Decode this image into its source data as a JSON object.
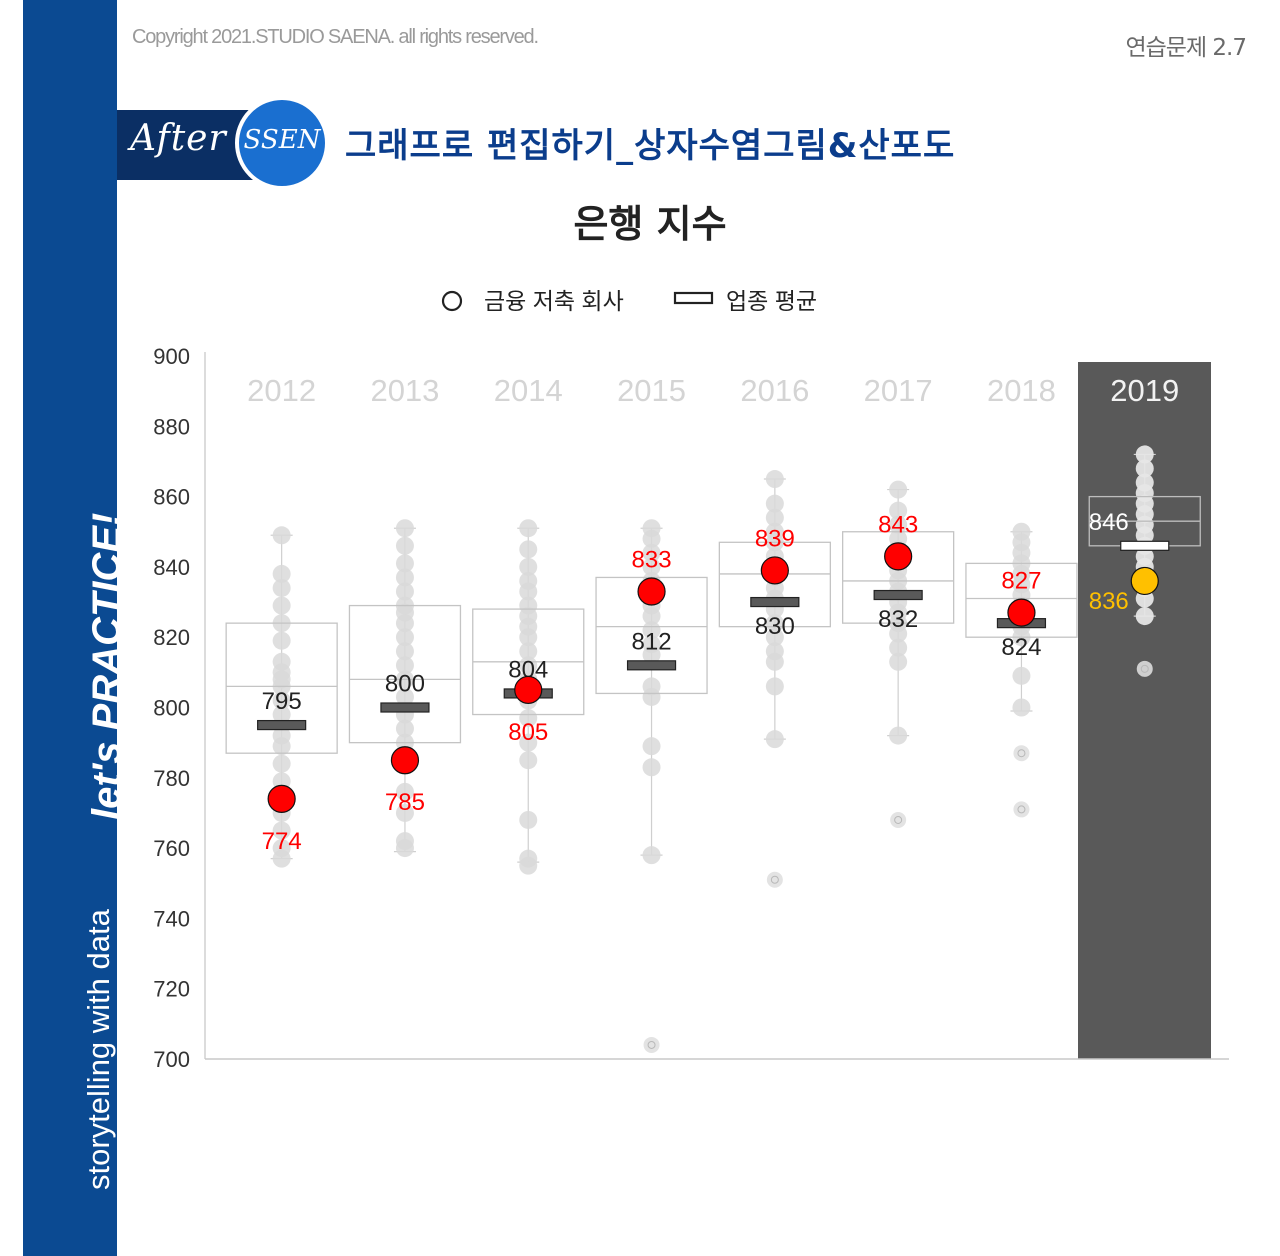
{
  "header": {
    "copyright": "Copyright 2021.STUDIO SAENA. all rights reserved.",
    "exercise_label": "연습문제 2.7",
    "badge_after": "After",
    "badge_ssen": "SSEN",
    "section_title": "그래프로 편집하기_상자수염그림&산포도",
    "sidebar_text": "storytelling with data",
    "sidebar_text_mid": "with",
    "sidebar_slogan": "let's PRACTICE!"
  },
  "colors": {
    "sidebar_blue": "#0b4a92",
    "highlight_red": "#ff0000",
    "highlight_yellow": "#ffc000",
    "highlight_column": "#595959",
    "dots_gray": "#d9d9d9"
  },
  "chart_data": {
    "type": "box",
    "title": "은행 지수",
    "legend": [
      {
        "name": "금융 저축 회사",
        "marker": "circle"
      },
      {
        "name": "업종 평균",
        "marker": "bar"
      }
    ],
    "legend_position": "top",
    "ylim": [
      700,
      900
    ],
    "yticks": [
      700,
      720,
      740,
      760,
      780,
      800,
      820,
      840,
      860,
      880,
      900
    ],
    "highlight_year": "2019",
    "categories": [
      "2012",
      "2013",
      "2014",
      "2015",
      "2016",
      "2017",
      "2018",
      "2019"
    ],
    "boxes": [
      {
        "q1": 787,
        "median": 806,
        "q3": 824,
        "min": 757,
        "max": 849
      },
      {
        "q1": 790,
        "median": 808,
        "q3": 829,
        "min": 759,
        "max": 851
      },
      {
        "q1": 798,
        "median": 813,
        "q3": 828,
        "min": 756,
        "max": 851
      },
      {
        "q1": 804,
        "median": 823,
        "q3": 837,
        "min": 758,
        "max": 851
      },
      {
        "q1": 823,
        "median": 838,
        "q3": 847,
        "min": 791,
        "max": 865
      },
      {
        "q1": 824,
        "median": 836,
        "q3": 850,
        "min": 792,
        "max": 862
      },
      {
        "q1": 820,
        "median": 831,
        "q3": 841,
        "min": 799,
        "max": 850
      },
      {
        "q1": 846,
        "median": 853,
        "q3": 860,
        "min": 826,
        "max": 872
      }
    ],
    "industry_average": [
      795,
      800,
      804,
      812,
      830,
      832,
      824,
      846
    ],
    "company": [
      774,
      785,
      805,
      833,
      839,
      843,
      827,
      836
    ],
    "company_label_position": [
      "below",
      "below",
      "below",
      "above",
      "above",
      "above",
      "above",
      "below"
    ],
    "average_label_position": [
      "above",
      "above",
      "above",
      "above",
      "below",
      "below",
      "below",
      "above"
    ],
    "outliers": [
      [],
      [],
      [],
      [
        704
      ],
      [
        751
      ],
      [
        768
      ],
      [
        787,
        771
      ],
      [
        811
      ]
    ],
    "scatter": [
      [
        849,
        838,
        834,
        829,
        824,
        819,
        813,
        810,
        808,
        806,
        802,
        798,
        792,
        789,
        784,
        779,
        770,
        765,
        760,
        757
      ],
      [
        851,
        846,
        841,
        837,
        833,
        829,
        827,
        824,
        820,
        816,
        812,
        808,
        803,
        798,
        794,
        790,
        784,
        776,
        770,
        762,
        760
      ],
      [
        851,
        845,
        840,
        836,
        833,
        829,
        826,
        823,
        820,
        816,
        812,
        808,
        802,
        797,
        790,
        785,
        768,
        757,
        755
      ],
      [
        851,
        848,
        844,
        840,
        836,
        832,
        829,
        826,
        822,
        818,
        815,
        806,
        803,
        789,
        783,
        758
      ],
      [
        865,
        858,
        854,
        850,
        847,
        843,
        840,
        837,
        834,
        831,
        828,
        824,
        820,
        816,
        813,
        806,
        791
      ],
      [
        862,
        856,
        852,
        848,
        845,
        842,
        839,
        836,
        833,
        830,
        827,
        824,
        821,
        817,
        813,
        792
      ],
      [
        850,
        847,
        844,
        841,
        838,
        835,
        832,
        829,
        826,
        823,
        820,
        809,
        800
      ],
      [
        872,
        868,
        864,
        861,
        858,
        855,
        852,
        849,
        846,
        843,
        840,
        837,
        834,
        831,
        826
      ]
    ]
  }
}
